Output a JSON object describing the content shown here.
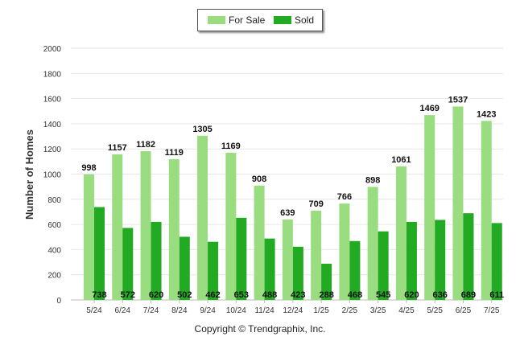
{
  "chart_data": {
    "type": "bar",
    "title": "",
    "xlabel": "",
    "ylabel": "Number of Homes",
    "ylim": [
      0,
      2000
    ],
    "yticks": [
      0,
      200,
      400,
      600,
      800,
      1000,
      1200,
      1400,
      1600,
      1800,
      2000
    ],
    "categories": [
      "5/24",
      "6/24",
      "7/24",
      "8/24",
      "9/24",
      "10/24",
      "11/24",
      "12/24",
      "1/25",
      "2/25",
      "3/25",
      "4/25",
      "5/25",
      "6/25",
      "7/25"
    ],
    "series": [
      {
        "name": "For Sale",
        "color": "#99dd80",
        "values": [
          998,
          1157,
          1182,
          1119,
          1305,
          1169,
          908,
          639,
          709,
          766,
          898,
          1061,
          1469,
          1537,
          1423
        ]
      },
      {
        "name": "Sold",
        "color": "#22aa22",
        "values": [
          738,
          572,
          620,
          502,
          462,
          653,
          488,
          423,
          288,
          468,
          545,
          620,
          636,
          689,
          611
        ]
      }
    ],
    "grid": true,
    "legend_position": "top-center"
  },
  "footer": {
    "copyright": "Copyright © Trendgraphix, Inc."
  }
}
